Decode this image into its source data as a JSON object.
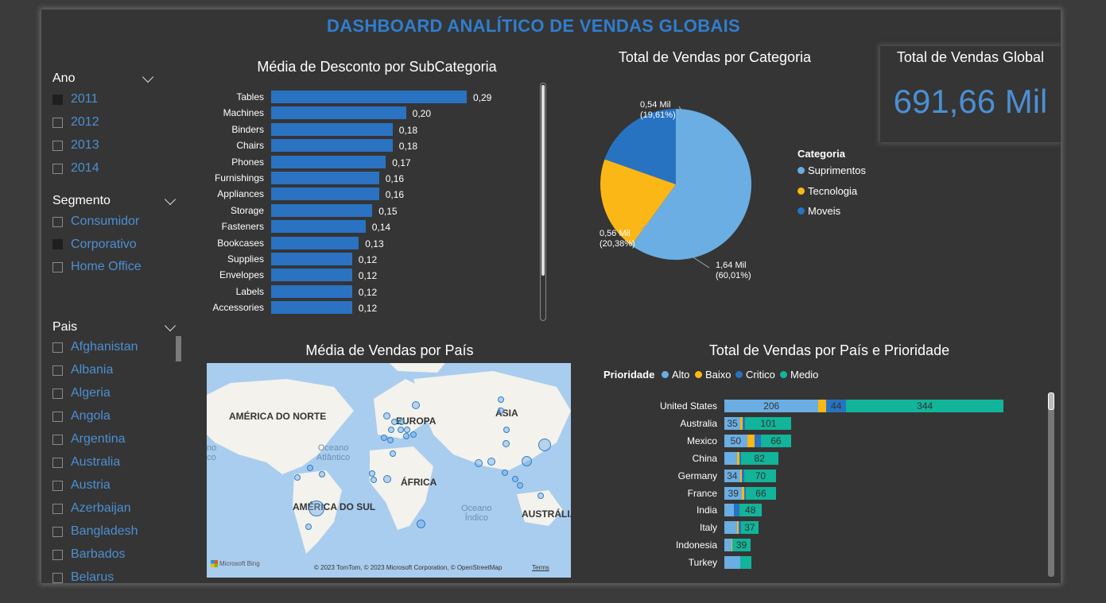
{
  "title": "DASHBOARD ANALÍTICO DE VENDAS GLOBAIS",
  "filters": {
    "ano": {
      "label": "Ano",
      "options": [
        {
          "label": "2011",
          "checked": true
        },
        {
          "label": "2012",
          "checked": false
        },
        {
          "label": "2013",
          "checked": false
        },
        {
          "label": "2014",
          "checked": false
        }
      ]
    },
    "segmento": {
      "label": "Segmento",
      "options": [
        {
          "label": "Consumidor",
          "checked": false
        },
        {
          "label": "Corporativo",
          "checked": true
        },
        {
          "label": "Home Office",
          "checked": false
        }
      ]
    },
    "pais": {
      "label": "Pais",
      "options": [
        {
          "label": "Afghanistan"
        },
        {
          "label": "Albania"
        },
        {
          "label": "Algeria"
        },
        {
          "label": "Angola"
        },
        {
          "label": "Argentina"
        },
        {
          "label": "Australia"
        },
        {
          "label": "Austria"
        },
        {
          "label": "Azerbaijan"
        },
        {
          "label": "Bangladesh"
        },
        {
          "label": "Barbados"
        },
        {
          "label": "Belarus"
        }
      ]
    }
  },
  "card": {
    "title": "Total de Vendas Global",
    "value": "691,66 Mil"
  },
  "map": {
    "title": "Média de Vendas por País",
    "labels": {
      "na": "AMÉRICA DO NORTE",
      "eu": "EUROPA",
      "asia": "ÁSIA",
      "af": "ÁFRICA",
      "sa": "AMÉRICA DO SUL",
      "au": "AUSTRÁLIA",
      "atl": "Oceano\nAtlântico",
      "ind": "Oceano\nÍndico",
      "pac": "no\nco"
    },
    "brand": "Microsoft Bing",
    "attribution": "© 2023 TomTom, © 2023 Microsoft Corporation, © OpenStreetMap",
    "terms": "Terms"
  },
  "chart_data": [
    {
      "type": "bar",
      "title": "Média de Desconto por SubCategoria",
      "categories": [
        "Tables",
        "Machines",
        "Binders",
        "Chairs",
        "Phones",
        "Furnishings",
        "Appliances",
        "Storage",
        "Fasteners",
        "Bookcases",
        "Supplies",
        "Envelopes",
        "Labels",
        "Accessories"
      ],
      "values": [
        0.29,
        0.2,
        0.18,
        0.18,
        0.17,
        0.16,
        0.16,
        0.15,
        0.14,
        0.13,
        0.12,
        0.12,
        0.12,
        0.12
      ],
      "labels": [
        "0,29",
        "0,20",
        "0,18",
        "0,18",
        "0,17",
        "0,16",
        "0,16",
        "0,15",
        "0,14",
        "0,13",
        "0,12",
        "0,12",
        "0,12",
        "0,12"
      ],
      "orientation": "horizontal",
      "color": "#2a72c2"
    },
    {
      "type": "pie",
      "title": "Total de Vendas por Categoria",
      "legend_title": "Categoria",
      "slices": [
        {
          "name": "Suprimentos",
          "value": 1.64,
          "pct": 60.01,
          "label": "1,64 Mil",
          "sub": "(60,01%)",
          "color": "#6aaee3"
        },
        {
          "name": "Tecnologia",
          "value": 0.56,
          "pct": 20.38,
          "label": "0,56 Mil",
          "sub": "(20,38%)",
          "color": "#fbb716"
        },
        {
          "name": "Moveis",
          "value": 0.54,
          "pct": 19.61,
          "label": "0,54 Mil",
          "sub": "(19,61%)",
          "color": "#2773c2"
        }
      ]
    },
    {
      "type": "bar",
      "title": "Total de Vendas por País e Prioridade",
      "legend_title": "Prioridade",
      "stacked": true,
      "orientation": "horizontal",
      "categories": [
        "United States",
        "Australia",
        "Mexico",
        "China",
        "Germany",
        "France",
        "India",
        "Italy",
        "Indonesia",
        "Turkey"
      ],
      "series": [
        {
          "name": "Alto",
          "color": "#6aaee3",
          "values": [
            206,
            35,
            50,
            28,
            34,
            39,
            21,
            28,
            15,
            34
          ],
          "labels": [
            "206",
            "35",
            "50",
            "",
            "34",
            "39",
            "",
            "",
            "",
            ""
          ]
        },
        {
          "name": "Baixo",
          "color": "#fbb716",
          "values": [
            17,
            5,
            17,
            5,
            5,
            4,
            0,
            3,
            3,
            0
          ],
          "labels": [
            "",
            "",
            "",
            "",
            "",
            "",
            "",
            "",
            "",
            ""
          ]
        },
        {
          "name": "Critico",
          "color": "#2773c2",
          "values": [
            44,
            6,
            13,
            3,
            5,
            4,
            12,
            6,
            0,
            0
          ],
          "labels": [
            "44",
            "",
            "",
            "",
            "",
            "",
            "",
            "",
            "",
            ""
          ]
        },
        {
          "name": "Medio",
          "color": "#12b49a",
          "values": [
            344,
            101,
            66,
            82,
            70,
            66,
            48,
            37,
            39,
            25
          ],
          "labels": [
            "344",
            "101",
            "66",
            "82",
            "70",
            "66",
            "48",
            "37",
            "39",
            ""
          ]
        }
      ]
    }
  ]
}
